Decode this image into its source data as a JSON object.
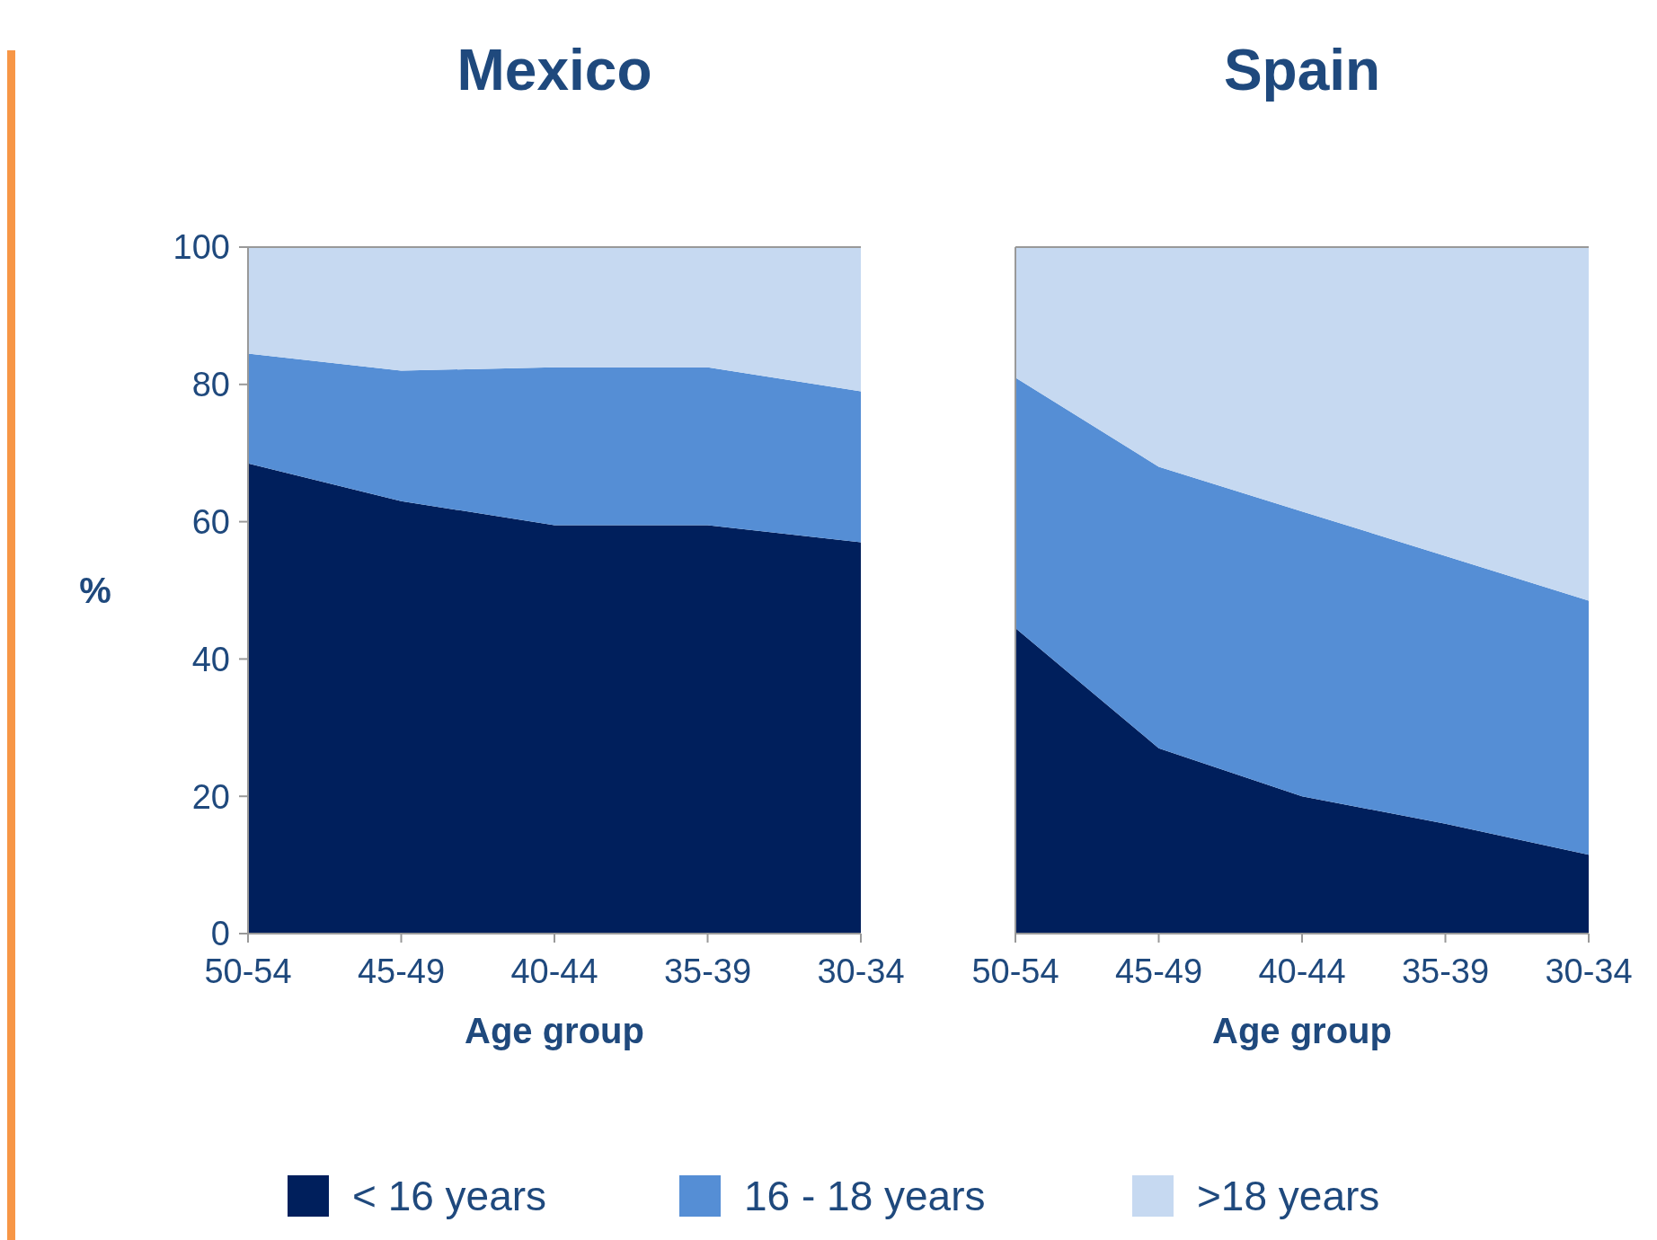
{
  "chart_data": [
    {
      "type": "area",
      "stacked": true,
      "title": "Mexico",
      "xlabel": "Age group",
      "ylabel": "%",
      "categories": [
        "50-54",
        "45-49",
        "40-44",
        "35-39",
        "30-34"
      ],
      "ylim": [
        0,
        100
      ],
      "yticks": [
        0,
        20,
        40,
        60,
        80,
        100
      ],
      "legend": "bottom",
      "series": [
        {
          "name": "< 16 years",
          "color": "#001f5c",
          "values": [
            68.5,
            63,
            59.5,
            59.5,
            57
          ]
        },
        {
          "name": "16 - 18 years",
          "color": "#558ed5",
          "values": [
            16,
            19,
            23,
            23,
            22
          ]
        },
        {
          "name": ">18 years",
          "color": "#c6d9f1",
          "values": [
            15.5,
            18,
            17.5,
            17.5,
            21
          ]
        }
      ]
    },
    {
      "type": "area",
      "stacked": true,
      "title": "Spain",
      "xlabel": "Age group",
      "categories": [
        "50-54",
        "45-49",
        "40-44",
        "35-39",
        "30-34"
      ],
      "ylim": [
        0,
        100
      ],
      "tick_labels": "x",
      "series": [
        {
          "color": "#001f5c",
          "values": [
            44.5,
            27,
            20,
            16,
            11.5
          ]
        },
        {
          "color": "#558ed5",
          "values": [
            36.5,
            41,
            41.5,
            39,
            37
          ]
        },
        {
          "color": "#c6d9f1",
          "values": [
            19,
            32,
            38.5,
            45,
            51.5
          ]
        }
      ]
    }
  ]
}
